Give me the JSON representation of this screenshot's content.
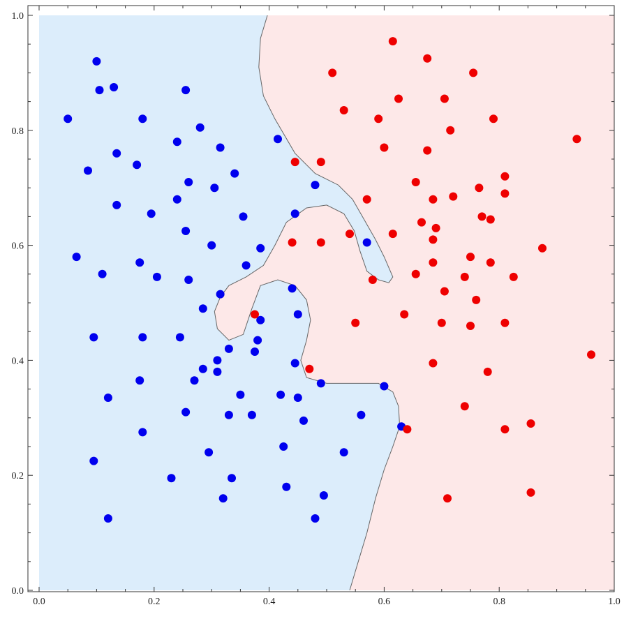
{
  "chart_data": {
    "type": "scatter",
    "title": "",
    "xlabel": "",
    "ylabel": "",
    "xlim": [
      0.0,
      1.0
    ],
    "ylim": [
      0.0,
      1.0
    ],
    "x_ticks": [
      "0.0",
      "0.2",
      "0.4",
      "0.6",
      "0.8",
      "1.0"
    ],
    "y_ticks": [
      "0.0",
      "0.2",
      "0.4",
      "0.6",
      "0.8",
      "1.0"
    ],
    "grid": false,
    "legend": "none",
    "colors": {
      "class_blue": "#0000ee",
      "class_red": "#ee0000",
      "region_blue": "#dcedfb",
      "region_red": "#fde8e8",
      "boundary": "#666666"
    },
    "decision_boundary": [
      [
        0.397,
        1.0
      ],
      [
        0.385,
        0.96
      ],
      [
        0.382,
        0.91
      ],
      [
        0.39,
        0.86
      ],
      [
        0.41,
        0.82
      ],
      [
        0.445,
        0.76
      ],
      [
        0.48,
        0.725
      ],
      [
        0.52,
        0.705
      ],
      [
        0.545,
        0.68
      ],
      [
        0.565,
        0.645
      ],
      [
        0.585,
        0.61
      ],
      [
        0.6,
        0.58
      ],
      [
        0.615,
        0.545
      ],
      [
        0.608,
        0.535
      ],
      [
        0.59,
        0.54
      ],
      [
        0.57,
        0.555
      ],
      [
        0.558,
        0.59
      ],
      [
        0.548,
        0.625
      ],
      [
        0.53,
        0.655
      ],
      [
        0.5,
        0.67
      ],
      [
        0.465,
        0.665
      ],
      [
        0.43,
        0.64
      ],
      [
        0.41,
        0.6
      ],
      [
        0.39,
        0.565
      ],
      [
        0.36,
        0.545
      ],
      [
        0.33,
        0.53
      ],
      [
        0.315,
        0.51
      ],
      [
        0.305,
        0.485
      ],
      [
        0.31,
        0.455
      ],
      [
        0.33,
        0.435
      ],
      [
        0.355,
        0.445
      ],
      [
        0.37,
        0.49
      ],
      [
        0.385,
        0.53
      ],
      [
        0.415,
        0.54
      ],
      [
        0.445,
        0.53
      ],
      [
        0.465,
        0.505
      ],
      [
        0.472,
        0.47
      ],
      [
        0.465,
        0.435
      ],
      [
        0.455,
        0.4
      ],
      [
        0.465,
        0.37
      ],
      [
        0.5,
        0.36
      ],
      [
        0.55,
        0.36
      ],
      [
        0.59,
        0.36
      ],
      [
        0.615,
        0.345
      ],
      [
        0.625,
        0.32
      ],
      [
        0.627,
        0.285
      ],
      [
        0.615,
        0.25
      ],
      [
        0.6,
        0.21
      ],
      [
        0.585,
        0.16
      ],
      [
        0.57,
        0.1
      ],
      [
        0.555,
        0.05
      ],
      [
        0.54,
        0.0
      ]
    ],
    "series": [
      {
        "color": "#0000ee",
        "points": [
          [
            0.05,
            0.82
          ],
          [
            0.065,
            0.58
          ],
          [
            0.085,
            0.73
          ],
          [
            0.1,
            0.92
          ],
          [
            0.105,
            0.87
          ],
          [
            0.13,
            0.875
          ],
          [
            0.135,
            0.76
          ],
          [
            0.135,
            0.67
          ],
          [
            0.11,
            0.55
          ],
          [
            0.095,
            0.44
          ],
          [
            0.095,
            0.225
          ],
          [
            0.12,
            0.335
          ],
          [
            0.12,
            0.125
          ],
          [
            0.17,
            0.74
          ],
          [
            0.175,
            0.57
          ],
          [
            0.175,
            0.365
          ],
          [
            0.18,
            0.82
          ],
          [
            0.18,
            0.44
          ],
          [
            0.18,
            0.275
          ],
          [
            0.195,
            0.655
          ],
          [
            0.205,
            0.545
          ],
          [
            0.23,
            0.195
          ],
          [
            0.24,
            0.78
          ],
          [
            0.24,
            0.68
          ],
          [
            0.245,
            0.44
          ],
          [
            0.255,
            0.87
          ],
          [
            0.255,
            0.625
          ],
          [
            0.255,
            0.31
          ],
          [
            0.26,
            0.71
          ],
          [
            0.26,
            0.54
          ],
          [
            0.27,
            0.365
          ],
          [
            0.28,
            0.805
          ],
          [
            0.285,
            0.385
          ],
          [
            0.285,
            0.49
          ],
          [
            0.295,
            0.24
          ],
          [
            0.3,
            0.6
          ],
          [
            0.305,
            0.7
          ],
          [
            0.31,
            0.38
          ],
          [
            0.31,
            0.4
          ],
          [
            0.315,
            0.77
          ],
          [
            0.315,
            0.515
          ],
          [
            0.32,
            0.16
          ],
          [
            0.33,
            0.42
          ],
          [
            0.33,
            0.305
          ],
          [
            0.335,
            0.195
          ],
          [
            0.34,
            0.725
          ],
          [
            0.35,
            0.34
          ],
          [
            0.355,
            0.65
          ],
          [
            0.36,
            0.565
          ],
          [
            0.37,
            0.305
          ],
          [
            0.375,
            0.415
          ],
          [
            0.38,
            0.435
          ],
          [
            0.385,
            0.47
          ],
          [
            0.385,
            0.595
          ],
          [
            0.415,
            0.785
          ],
          [
            0.42,
            0.34
          ],
          [
            0.425,
            0.25
          ],
          [
            0.43,
            0.18
          ],
          [
            0.44,
            0.525
          ],
          [
            0.445,
            0.655
          ],
          [
            0.445,
            0.395
          ],
          [
            0.45,
            0.335
          ],
          [
            0.45,
            0.48
          ],
          [
            0.46,
            0.295
          ],
          [
            0.48,
            0.125
          ],
          [
            0.48,
            0.705
          ],
          [
            0.49,
            0.36
          ],
          [
            0.495,
            0.165
          ],
          [
            0.53,
            0.24
          ],
          [
            0.56,
            0.305
          ],
          [
            0.57,
            0.605
          ],
          [
            0.6,
            0.355
          ],
          [
            0.63,
            0.285
          ]
        ]
      },
      {
        "color": "#ee0000",
        "points": [
          [
            0.375,
            0.48
          ],
          [
            0.44,
            0.605
          ],
          [
            0.445,
            0.745
          ],
          [
            0.47,
            0.385
          ],
          [
            0.49,
            0.605
          ],
          [
            0.49,
            0.745
          ],
          [
            0.51,
            0.9
          ],
          [
            0.53,
            0.835
          ],
          [
            0.54,
            0.62
          ],
          [
            0.55,
            0.465
          ],
          [
            0.57,
            0.68
          ],
          [
            0.58,
            0.54
          ],
          [
            0.59,
            0.82
          ],
          [
            0.6,
            0.77
          ],
          [
            0.615,
            0.62
          ],
          [
            0.615,
            0.955
          ],
          [
            0.625,
            0.855
          ],
          [
            0.635,
            0.48
          ],
          [
            0.64,
            0.28
          ],
          [
            0.655,
            0.55
          ],
          [
            0.655,
            0.71
          ],
          [
            0.665,
            0.64
          ],
          [
            0.675,
            0.925
          ],
          [
            0.675,
            0.765
          ],
          [
            0.685,
            0.68
          ],
          [
            0.685,
            0.61
          ],
          [
            0.685,
            0.57
          ],
          [
            0.685,
            0.395
          ],
          [
            0.69,
            0.63
          ],
          [
            0.7,
            0.465
          ],
          [
            0.705,
            0.855
          ],
          [
            0.705,
            0.52
          ],
          [
            0.71,
            0.16
          ],
          [
            0.715,
            0.8
          ],
          [
            0.72,
            0.685
          ],
          [
            0.74,
            0.32
          ],
          [
            0.74,
            0.545
          ],
          [
            0.75,
            0.58
          ],
          [
            0.75,
            0.46
          ],
          [
            0.755,
            0.9
          ],
          [
            0.76,
            0.505
          ],
          [
            0.765,
            0.7
          ],
          [
            0.77,
            0.65
          ],
          [
            0.78,
            0.38
          ],
          [
            0.785,
            0.645
          ],
          [
            0.785,
            0.57
          ],
          [
            0.79,
            0.82
          ],
          [
            0.81,
            0.72
          ],
          [
            0.81,
            0.69
          ],
          [
            0.81,
            0.465
          ],
          [
            0.81,
            0.28
          ],
          [
            0.825,
            0.545
          ],
          [
            0.855,
            0.29
          ],
          [
            0.855,
            0.17
          ],
          [
            0.875,
            0.595
          ],
          [
            0.935,
            0.785
          ],
          [
            0.96,
            0.41
          ]
        ]
      }
    ]
  }
}
